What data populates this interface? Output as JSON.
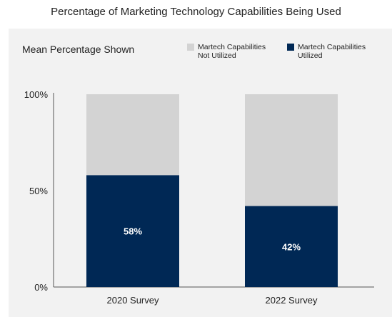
{
  "page": {
    "title": "Percentage of Marketing Technology Capabilities Being Used"
  },
  "colors": {
    "utilized": "#002855",
    "not_utilized": "#d3d3d3",
    "panel_bg": "#f2f2f2",
    "axis": "#555555",
    "data_label": "#ffffff"
  },
  "chart_data": {
    "type": "bar",
    "stacked": true,
    "title": "Percentage of Marketing Technology Capabilities Being Used",
    "subtitle": "Mean Percentage Shown",
    "categories": [
      "2020 Survey",
      "2022 Survey"
    ],
    "series": [
      {
        "name": "Martech Capabilities Utilized",
        "values": [
          58,
          42
        ],
        "labels": [
          "58%",
          "42%"
        ]
      },
      {
        "name": "Martech Capabilities Not Utilized",
        "values": [
          42,
          58
        ]
      }
    ],
    "yticks": [
      {
        "value": 0,
        "label": "0%"
      },
      {
        "value": 50,
        "label": "50%"
      },
      {
        "value": 100,
        "label": "100%"
      }
    ],
    "ylim": [
      0,
      100
    ],
    "legend": [
      {
        "line1": "Martech Capabilities",
        "line2": "Not Utilized",
        "series": 1
      },
      {
        "line1": "Martech Capabilities",
        "line2": "Utilized",
        "series": 0
      }
    ],
    "legend_position": "top-right",
    "grid": false
  }
}
